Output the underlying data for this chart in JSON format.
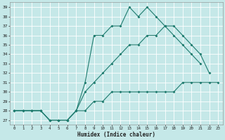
{
  "xlabel": "Humidex (Indice chaleur)",
  "bg_color": "#c5e8e8",
  "grid_color": "#ffffff",
  "line_color": "#1e7b6e",
  "xlim": [
    -0.5,
    23.5
  ],
  "ylim": [
    26.5,
    39.5
  ],
  "xticks": [
    0,
    1,
    2,
    3,
    4,
    5,
    6,
    7,
    8,
    9,
    10,
    11,
    12,
    13,
    14,
    15,
    16,
    17,
    18,
    19,
    20,
    21,
    22,
    23
  ],
  "yticks": [
    27,
    28,
    29,
    30,
    31,
    32,
    33,
    34,
    35,
    36,
    37,
    38,
    39
  ],
  "line1_x": [
    0,
    1,
    2,
    3,
    4,
    5,
    6,
    7,
    8,
    9,
    10,
    11,
    12,
    13,
    14,
    15,
    16,
    17,
    18,
    19,
    20,
    21
  ],
  "line1_y": [
    28,
    28,
    28,
    28,
    27,
    27,
    27,
    28,
    31,
    36,
    36,
    37,
    37,
    39,
    38,
    39,
    38,
    37,
    36,
    35,
    34,
    33
  ],
  "line2_x": [
    0,
    1,
    2,
    3,
    4,
    5,
    6,
    7,
    8,
    9,
    10,
    11,
    12,
    13,
    14,
    15,
    16,
    17,
    18,
    19,
    20,
    21,
    22
  ],
  "line2_y": [
    28,
    28,
    28,
    28,
    27,
    27,
    27,
    28,
    30,
    31,
    32,
    33,
    34,
    35,
    35,
    36,
    36,
    37,
    37,
    36,
    35,
    34,
    32
  ],
  "line3_x": [
    0,
    1,
    2,
    3,
    4,
    5,
    6,
    7,
    8,
    9,
    10,
    11,
    12,
    13,
    14,
    15,
    16,
    17,
    18,
    19,
    20,
    21,
    22,
    23
  ],
  "line3_y": [
    28,
    28,
    28,
    28,
    27,
    27,
    27,
    28,
    28,
    29,
    29,
    30,
    30,
    30,
    30,
    30,
    30,
    30,
    30,
    31,
    31,
    31,
    31,
    31
  ]
}
